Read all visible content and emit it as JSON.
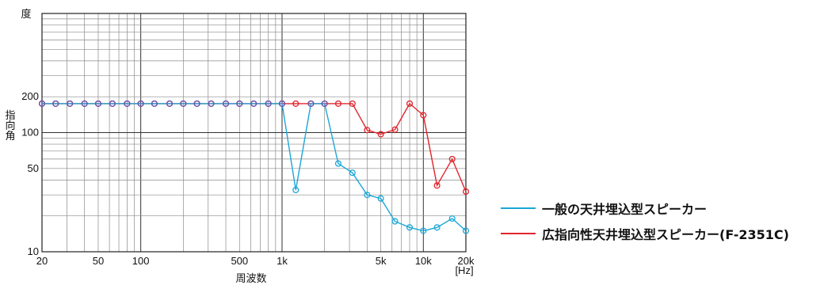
{
  "chart_data": {
    "type": "line",
    "y_scale": "log",
    "x_scale": "log",
    "xlabel": "周波数",
    "ylabel_top": "度",
    "ylabel": "指向角",
    "x_unit": "[Hz]",
    "xlim": [
      20,
      20000
    ],
    "ylim": [
      10,
      1000
    ],
    "x_tick_labels": [
      {
        "value": 20,
        "label": "20"
      },
      {
        "value": 50,
        "label": "50"
      },
      {
        "value": 100,
        "label": "100"
      },
      {
        "value": 500,
        "label": "500"
      },
      {
        "value": 1000,
        "label": "1k"
      },
      {
        "value": 5000,
        "label": "5k"
      },
      {
        "value": 10000,
        "label": "10k"
      },
      {
        "value": 20000,
        "label": "20k"
      }
    ],
    "y_tick_labels": [
      {
        "value": 10,
        "label": "10"
      },
      {
        "value": 50,
        "label": "50"
      },
      {
        "value": 100,
        "label": "100"
      },
      {
        "value": 200,
        "label": "200"
      }
    ],
    "grid": true,
    "legend_position": "right",
    "x": [
      20,
      25,
      31.5,
      40,
      50,
      63,
      80,
      100,
      125,
      160,
      200,
      250,
      315,
      400,
      500,
      630,
      800,
      1000,
      1250,
      1600,
      2000,
      2500,
      3150,
      4000,
      5000,
      6300,
      8000,
      10000,
      12500,
      16000,
      20000
    ],
    "series": [
      {
        "name": "一般の天井埋込型スピーカー",
        "color": "#1aa7d6",
        "values": [
          175,
          175,
          175,
          175,
          175,
          175,
          175,
          175,
          175,
          175,
          175,
          175,
          175,
          175,
          175,
          175,
          175,
          175,
          33,
          175,
          175,
          55,
          46,
          30,
          28,
          18,
          16,
          15,
          16,
          19,
          15
        ]
      },
      {
        "name": "広指向性天井埋込型スピーカー(F-2351C)",
        "color": "#e0242b",
        "values": [
          175,
          175,
          175,
          175,
          175,
          175,
          175,
          175,
          175,
          175,
          175,
          175,
          175,
          175,
          175,
          175,
          175,
          175,
          175,
          175,
          175,
          175,
          175,
          105,
          97,
          106,
          175,
          140,
          36,
          60,
          32
        ]
      }
    ]
  }
}
